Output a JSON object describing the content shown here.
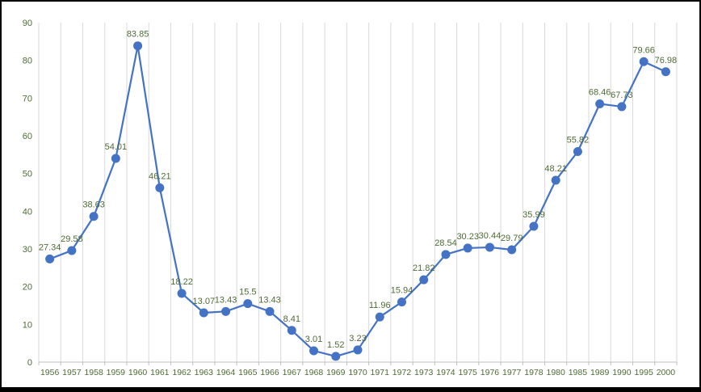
{
  "chart_data": {
    "type": "line",
    "title": "",
    "xlabel": "",
    "ylabel": "",
    "legend": "none",
    "grid": "vertical",
    "ylim": [
      0,
      90
    ],
    "ytick_step": 10,
    "categories": [
      "1956",
      "1957",
      "1958",
      "1959",
      "1960",
      "1961",
      "1962",
      "1963",
      "1964",
      "1965",
      "1966",
      "1967",
      "1968",
      "1969",
      "1970",
      "1971",
      "1972",
      "1973",
      "1974",
      "1975",
      "1976",
      "1977",
      "1978",
      "1980",
      "1985",
      "1989",
      "1990",
      "1995",
      "2000"
    ],
    "values": [
      27.34,
      29.58,
      38.63,
      54.01,
      83.85,
      46.21,
      18.22,
      13.07,
      13.43,
      15.5,
      13.43,
      8.41,
      3.01,
      1.52,
      3.23,
      11.96,
      15.94,
      21.82,
      28.54,
      30.23,
      30.44,
      29.79,
      35.99,
      48.21,
      55.82,
      68.46,
      67.73,
      79.66,
      76.98
    ],
    "data_labels": [
      "27.34",
      "29.58",
      "38.63",
      "54.01",
      "83.85",
      "46.21",
      "18.22",
      "13.07",
      "13.43",
      "15.5",
      "13.43",
      "8.41",
      "3.01",
      "1.52",
      "3.23",
      "11.96",
      "15.94",
      "21.82",
      "28.54",
      "30.23",
      "30.44",
      "29.79",
      "35.99",
      "48.21",
      "55.82",
      "68.46",
      "67.73",
      "79.66",
      "76.98"
    ]
  },
  "colors": {
    "line": "#4472C4",
    "marker": "#4472C4",
    "gridline": "#D9D9D9",
    "axis_line": "#BFBFBF",
    "tick_mark": "#BFBFBF",
    "text_green": "#4e6b35",
    "background": "#FFFFFF",
    "frame_border": "#000000"
  }
}
